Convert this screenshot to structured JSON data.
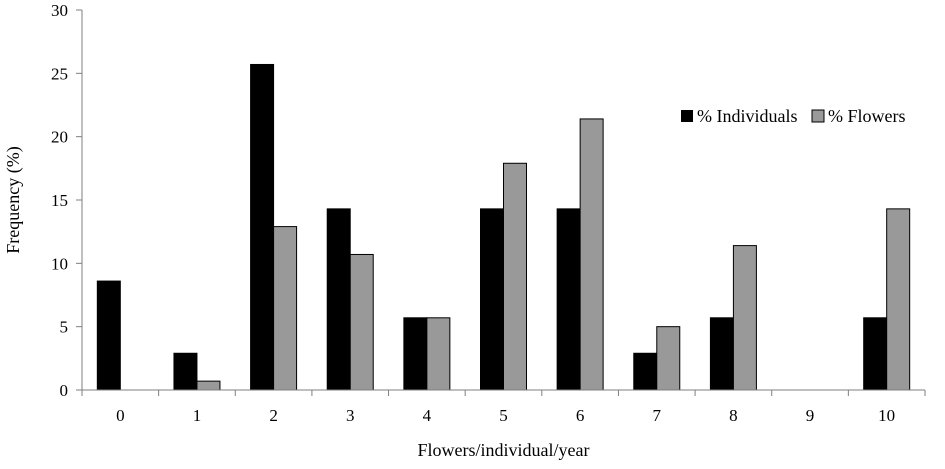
{
  "chart_data": {
    "type": "bar",
    "title": "",
    "xlabel": "Flowers/individual/year",
    "ylabel": "Frequency (%)",
    "categories": [
      "0",
      "1",
      "2",
      "3",
      "4",
      "5",
      "6",
      "7",
      "8",
      "9",
      "10"
    ],
    "ylim": [
      0,
      30
    ],
    "yticks": [
      "0",
      "5",
      "10",
      "15",
      "20",
      "25",
      "30"
    ],
    "grid": false,
    "legend_position": "right",
    "series": [
      {
        "name": "% Individuals",
        "color": "#000000",
        "values": [
          8.6,
          2.9,
          25.7,
          14.3,
          5.7,
          14.3,
          14.3,
          2.9,
          5.7,
          0,
          5.7
        ]
      },
      {
        "name": "% Flowers",
        "color": "#999999",
        "values": [
          0,
          0.7,
          12.9,
          10.7,
          5.7,
          17.9,
          21.4,
          5.0,
          11.4,
          0,
          14.3
        ]
      }
    ]
  }
}
